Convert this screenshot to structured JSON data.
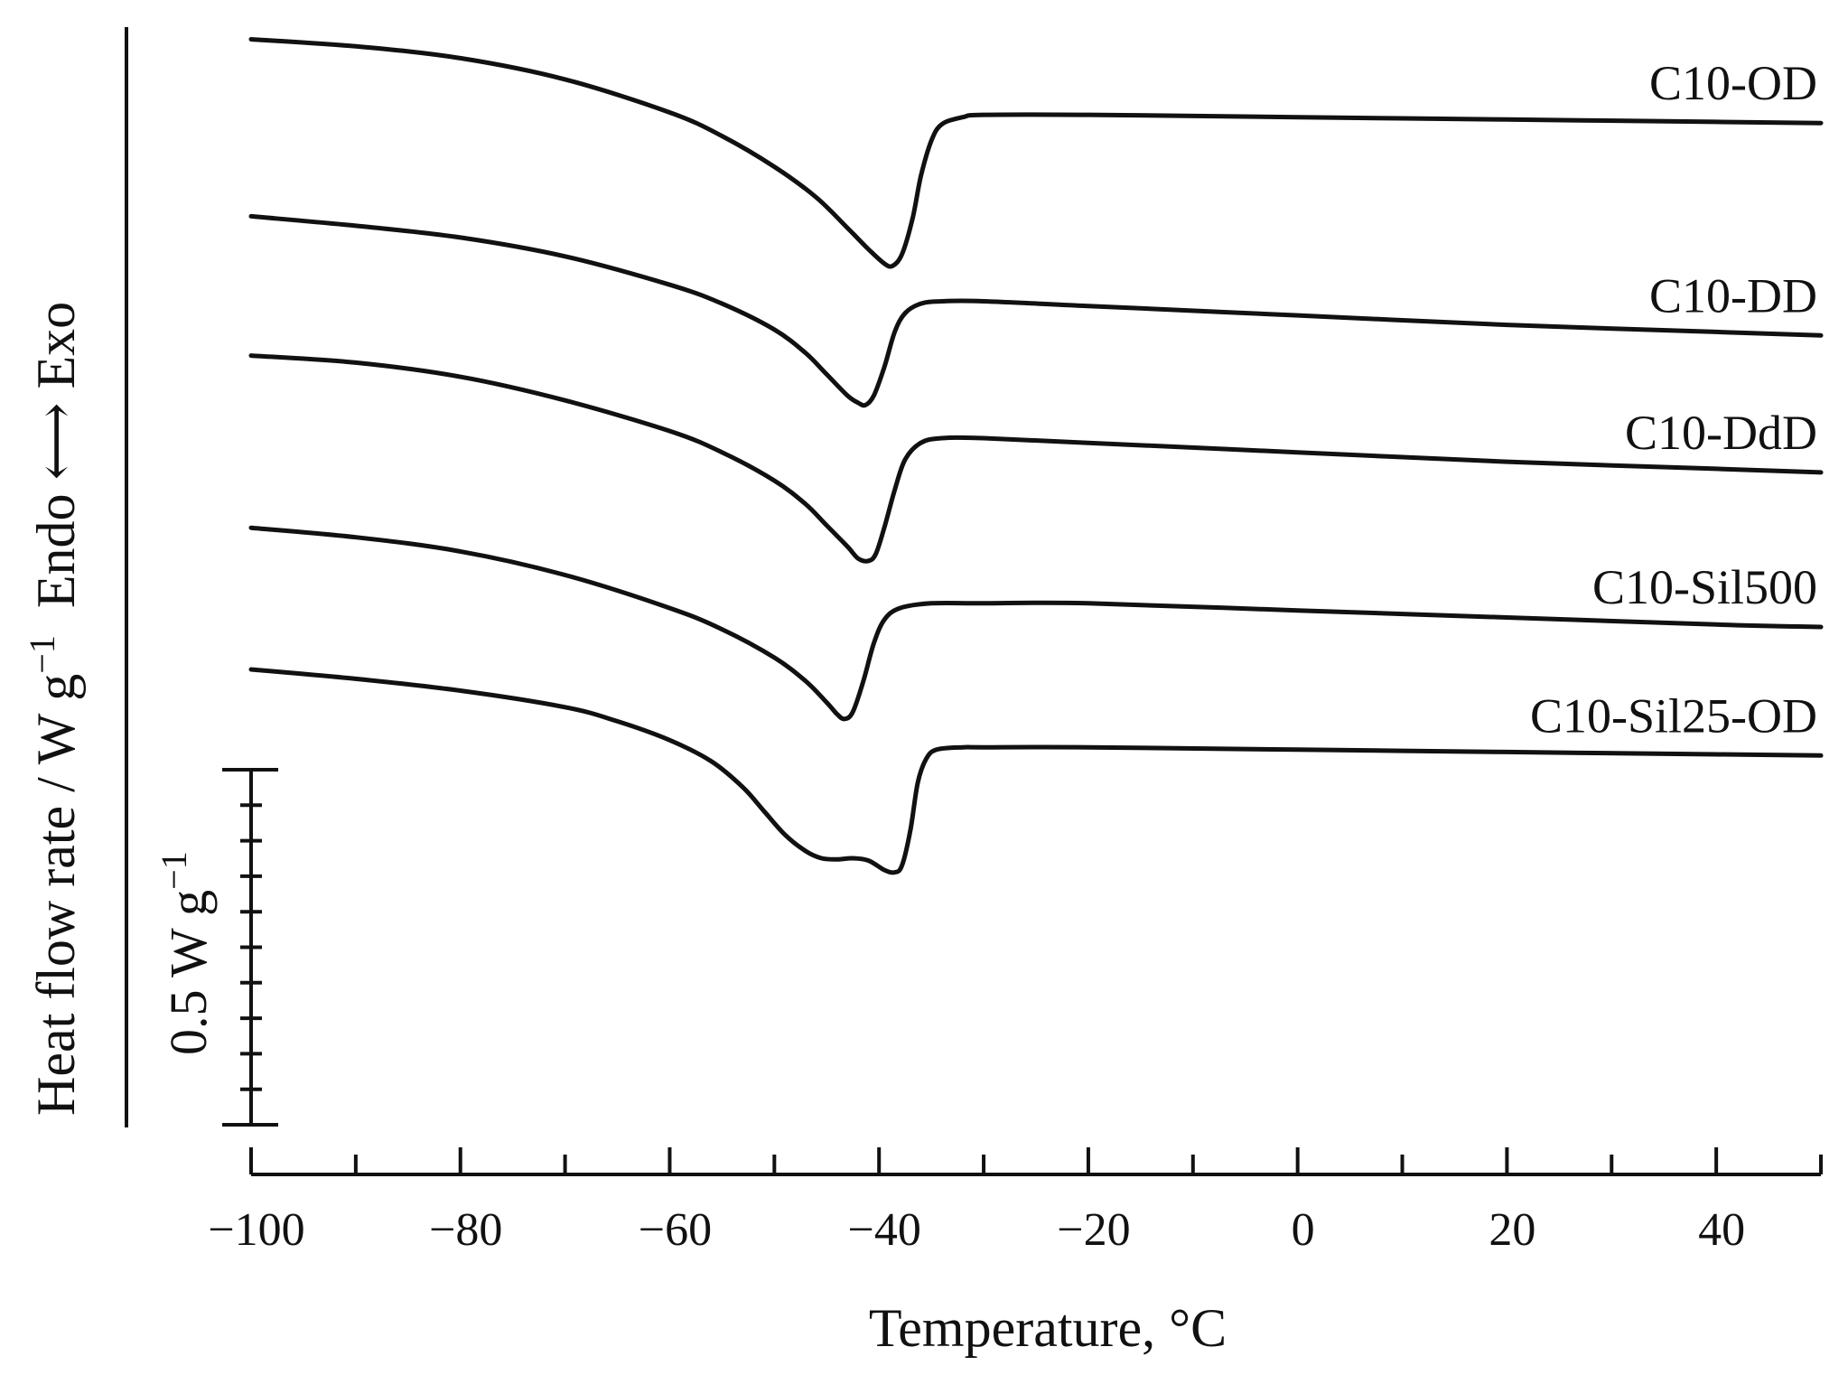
{
  "chart_data": {
    "type": "line",
    "xlabel": "Temperature, °C",
    "ylabel": {
      "text": "Heat flow rate / W g",
      "superscript": "−1",
      "direction_left": "Endo",
      "arrow": "⟷",
      "direction_right": "Exo"
    },
    "xlim": [
      -100,
      50
    ],
    "x_ticks": [
      {
        "value": -100,
        "label": "−100"
      },
      {
        "value": -80,
        "label": "−80"
      },
      {
        "value": -60,
        "label": "−60"
      },
      {
        "value": -40,
        "label": "−40"
      },
      {
        "value": -20,
        "label": "−20"
      },
      {
        "value": 0,
        "label": "0"
      },
      {
        "value": 20,
        "label": "20"
      },
      {
        "value": 40,
        "label": "40"
      }
    ],
    "x_minor_step": 10,
    "y_units": "W g−1 (relative; curves vertically offset)",
    "ylim": [
      0,
      4.9
    ],
    "scale_bar": {
      "text": "0.5 W g",
      "superscript": "−1",
      "span": 0.5,
      "divisions": 10
    },
    "series": [
      {
        "name": "C10-OD",
        "points": [
          [
            -100,
            4.81
          ],
          [
            -90,
            4.78
          ],
          [
            -80,
            4.73
          ],
          [
            -70,
            4.64
          ],
          [
            -60,
            4.5
          ],
          [
            -55,
            4.4
          ],
          [
            -50,
            4.27
          ],
          [
            -46,
            4.14
          ],
          [
            -43,
            4.01
          ],
          [
            -41,
            3.92
          ],
          [
            -39.5,
            3.86
          ],
          [
            -38.7,
            3.85
          ],
          [
            -37.8,
            3.9
          ],
          [
            -36.8,
            4.05
          ],
          [
            -36,
            4.23
          ],
          [
            -35,
            4.38
          ],
          [
            -34,
            4.45
          ],
          [
            -32,
            4.48
          ],
          [
            -30,
            4.49
          ],
          [
            -20,
            4.49
          ],
          [
            0,
            4.48
          ],
          [
            20,
            4.47
          ],
          [
            40,
            4.46
          ],
          [
            50,
            4.455
          ]
        ]
      },
      {
        "name": "C10-DD",
        "points": [
          [
            -100,
            4.06
          ],
          [
            -90,
            4.02
          ],
          [
            -80,
            3.97
          ],
          [
            -70,
            3.89
          ],
          [
            -60,
            3.77
          ],
          [
            -55,
            3.69
          ],
          [
            -50,
            3.58
          ],
          [
            -47,
            3.48
          ],
          [
            -45,
            3.39
          ],
          [
            -43,
            3.3
          ],
          [
            -42,
            3.27
          ],
          [
            -41.3,
            3.26
          ],
          [
            -40.5,
            3.3
          ],
          [
            -39.5,
            3.42
          ],
          [
            -38.5,
            3.57
          ],
          [
            -37.5,
            3.65
          ],
          [
            -36,
            3.69
          ],
          [
            -34,
            3.7
          ],
          [
            -30,
            3.7
          ],
          [
            -20,
            3.68
          ],
          [
            0,
            3.64
          ],
          [
            20,
            3.6
          ],
          [
            40,
            3.57
          ],
          [
            50,
            3.555
          ]
        ]
      },
      {
        "name": "C10-DdD",
        "points": [
          [
            -100,
            3.47
          ],
          [
            -90,
            3.44
          ],
          [
            -80,
            3.38
          ],
          [
            -70,
            3.28
          ],
          [
            -60,
            3.15
          ],
          [
            -55,
            3.06
          ],
          [
            -50,
            2.94
          ],
          [
            -47,
            2.84
          ],
          [
            -45,
            2.75
          ],
          [
            -43,
            2.66
          ],
          [
            -42,
            2.61
          ],
          [
            -41,
            2.6
          ],
          [
            -40.3,
            2.63
          ],
          [
            -39.5,
            2.74
          ],
          [
            -38.5,
            2.9
          ],
          [
            -37.5,
            3.03
          ],
          [
            -36,
            3.1
          ],
          [
            -34,
            3.12
          ],
          [
            -30,
            3.12
          ],
          [
            -20,
            3.1
          ],
          [
            0,
            3.06
          ],
          [
            20,
            3.02
          ],
          [
            40,
            2.99
          ],
          [
            50,
            2.975
          ]
        ]
      },
      {
        "name": "C10-Sil500",
        "points": [
          [
            -100,
            2.74
          ],
          [
            -90,
            2.7
          ],
          [
            -80,
            2.64
          ],
          [
            -70,
            2.54
          ],
          [
            -60,
            2.4
          ],
          [
            -55,
            2.31
          ],
          [
            -50,
            2.19
          ],
          [
            -47,
            2.09
          ],
          [
            -45,
            2.0
          ],
          [
            -44,
            1.95
          ],
          [
            -43.3,
            1.93
          ],
          [
            -42.5,
            1.96
          ],
          [
            -41.5,
            2.09
          ],
          [
            -40.5,
            2.25
          ],
          [
            -39.5,
            2.35
          ],
          [
            -38,
            2.4
          ],
          [
            -35,
            2.42
          ],
          [
            -30,
            2.42
          ],
          [
            -20,
            2.42
          ],
          [
            0,
            2.39
          ],
          [
            20,
            2.36
          ],
          [
            40,
            2.33
          ],
          [
            50,
            2.32
          ]
        ]
      },
      {
        "name": "C10-Sil25-OD",
        "points": [
          [
            -100,
            2.14
          ],
          [
            -90,
            2.1
          ],
          [
            -80,
            2.05
          ],
          [
            -70,
            1.98
          ],
          [
            -65,
            1.92
          ],
          [
            -60,
            1.84
          ],
          [
            -56,
            1.75
          ],
          [
            -53,
            1.64
          ],
          [
            -51,
            1.54
          ],
          [
            -49,
            1.44
          ],
          [
            -47,
            1.37
          ],
          [
            -45.5,
            1.34
          ],
          [
            -44,
            1.335
          ],
          [
            -42.5,
            1.34
          ],
          [
            -41,
            1.33
          ],
          [
            -39.5,
            1.29
          ],
          [
            -38.5,
            1.28
          ],
          [
            -37.8,
            1.31
          ],
          [
            -37,
            1.46
          ],
          [
            -36.3,
            1.66
          ],
          [
            -35.5,
            1.76
          ],
          [
            -34.5,
            1.8
          ],
          [
            -32,
            1.81
          ],
          [
            -30,
            1.81
          ],
          [
            -20,
            1.81
          ],
          [
            0,
            1.8
          ],
          [
            20,
            1.79
          ],
          [
            40,
            1.78
          ],
          [
            50,
            1.775
          ]
        ]
      }
    ]
  }
}
